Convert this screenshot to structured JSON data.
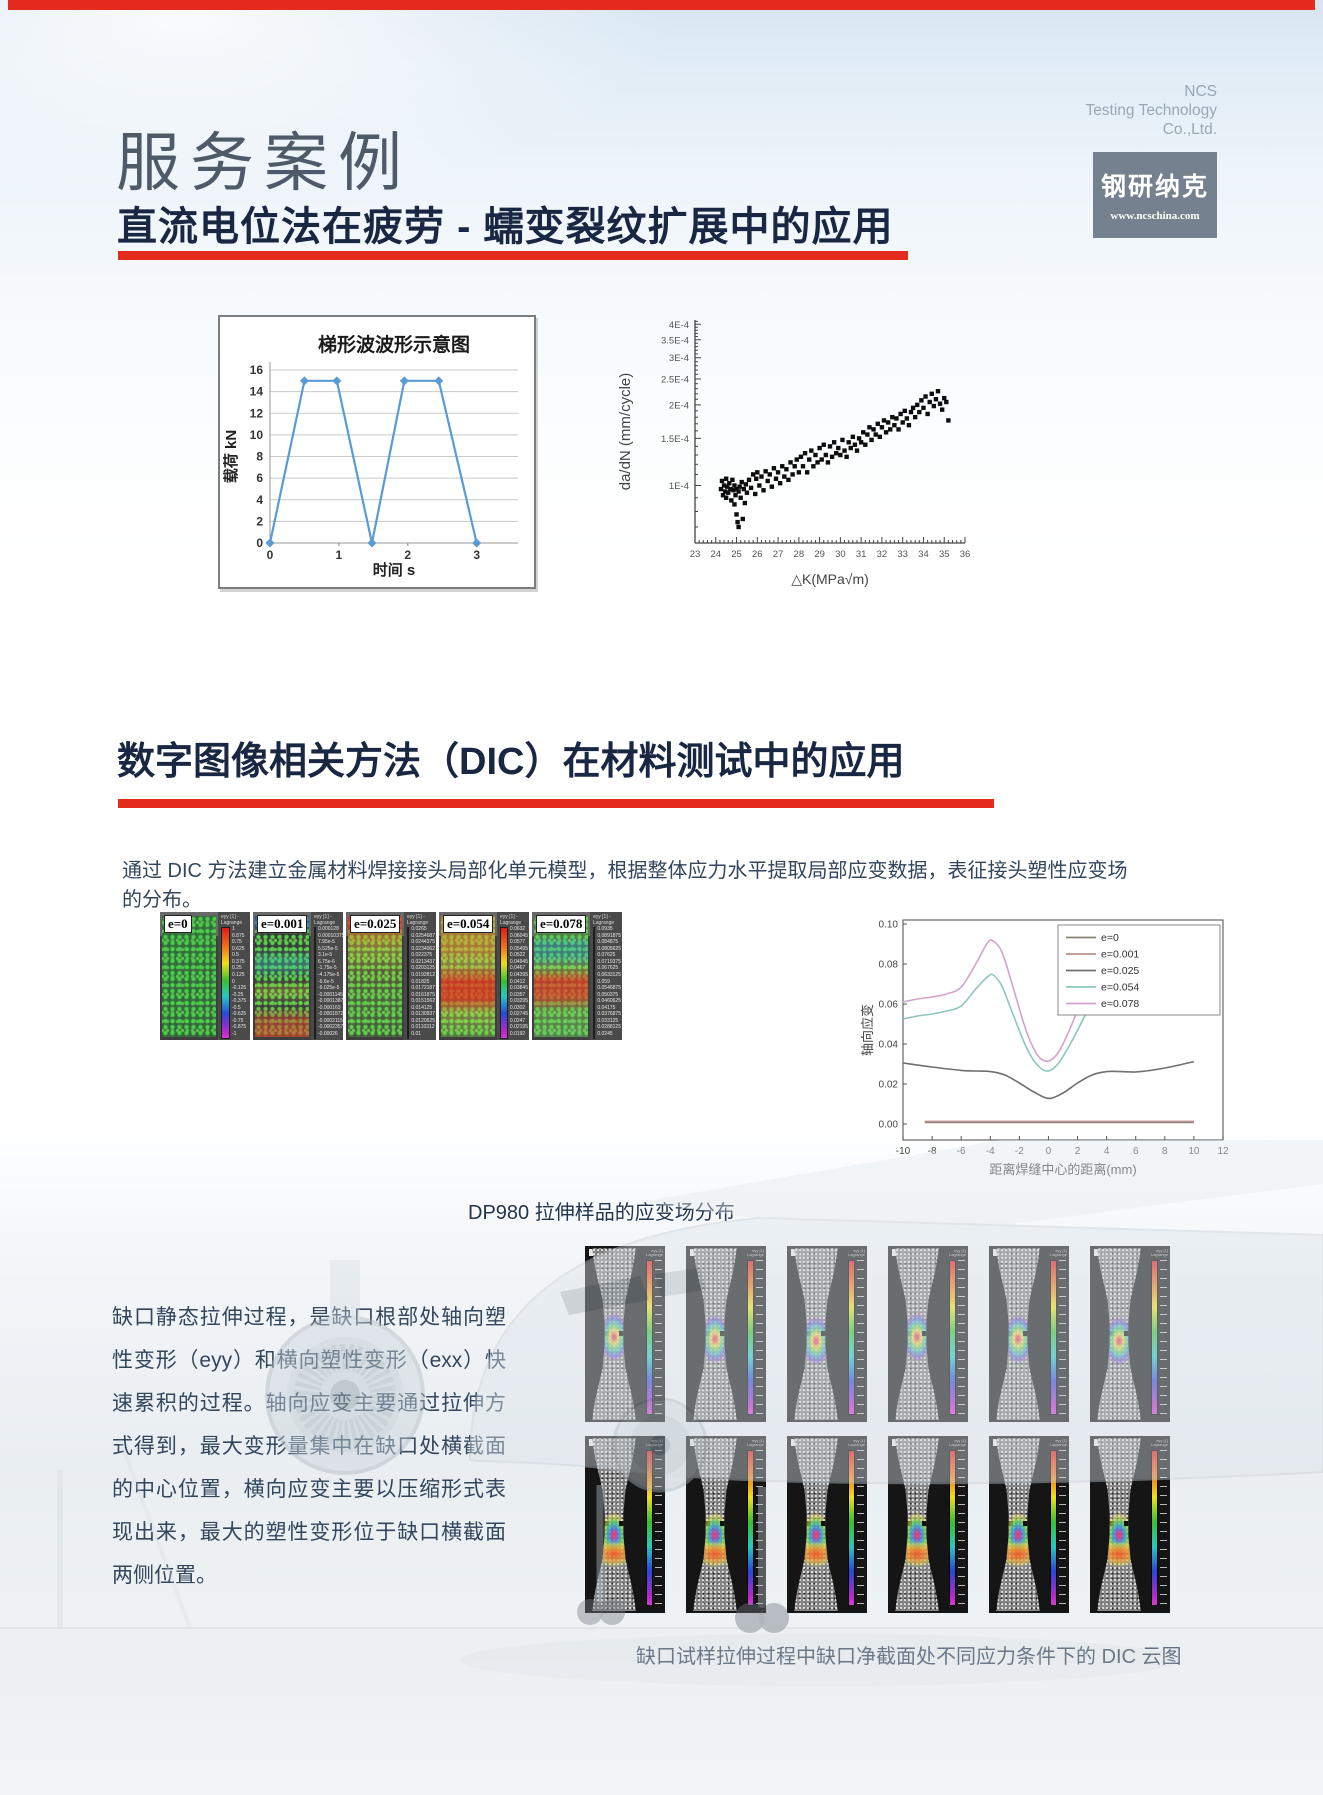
{
  "page": {
    "accent_red": "#e52a1e",
    "navy": "#1a2742",
    "header": {
      "company_lines": [
        "NCS",
        "Testing Technology",
        "Co.,Ltd."
      ],
      "page_title": "服务案例",
      "subtitle": "直流电位法在疲劳 - 蠕变裂纹扩展中的应用",
      "logo_text": "钢研纳克",
      "logo_url": "www.ncschina.com"
    },
    "section2_title": "数字图像相关方法（DIC）在材料测试中的应用",
    "intro_paragraph": "通过 DIC 方法建立金属材料焊接接头局部化单元模型，根据整体应力水平提取局部应变数据，表征接头塑性应变场的分布。",
    "caption_dp980": "DP980 拉伸样品的应变场分布",
    "notch_paragraph": "缺口静态拉伸过程，是缺口根部处轴向塑性变形（eyy）和横向塑性变形（exx）快速累积的过程。轴向应变主要通过拉伸方式得到，最大变形量集中在缺口处横截面的中心位置，横向应变主要以压缩形式表现出来，最大的塑性变形位于缺口横截面两侧位置。",
    "caption_dic": "缺口试样拉伸过程中缺口净截面处不同应力条件下的 DIC 云图"
  },
  "dic_panels": [
    {
      "label": "e=0",
      "style": "b-green",
      "cbar_title": "eyy [1] -\nLagrange",
      "cbar_values": [
        "1",
        "0.875",
        "0.75",
        "0.625",
        "0.5",
        "0.375",
        "0.25",
        "0.125",
        "0",
        "-0.125",
        "-0.25",
        "-0.375",
        "-0.5",
        "-0.625",
        "-0.75",
        "-0.875",
        "-1"
      ]
    },
    {
      "label": "e=0.001",
      "style": "b-m1",
      "cbar_title": "eyy [1] -\nLagrange",
      "cbar_values": [
        "0.000128",
        "0.00010375",
        "7.95e-5",
        "5.525e-5",
        "3.1e-5",
        "6.75e-6",
        "-1.75e-5",
        "-4.175e-5",
        "-6.6e-5",
        "-9.025e-5",
        "-0.0001145",
        "-0.00013875",
        "-0.000163",
        "-0.00018725",
        "-0.0002115",
        "-0.00023575",
        "-0.00026"
      ]
    },
    {
      "label": "e=0.025",
      "style": "b-m2",
      "cbar_title": "eyy [1] -\nLagrange",
      "cbar_values": [
        "0.0265",
        "0.0254687",
        "0.0244375",
        "0.0234062",
        "0.022375",
        "0.0213437",
        "0.0203125",
        "0.0192812",
        "0.01825",
        "0.0172187",
        "0.0161875",
        "0.0151562",
        "0.014125",
        "0.0130937",
        "0.0120625",
        "0.0110312",
        "0.01"
      ]
    },
    {
      "label": "e=0.054",
      "style": "b-warm",
      "cbar_title": "eyy [1] -\nLagrange",
      "cbar_values": [
        "0.0632",
        "0.06045",
        "0.0577",
        "0.05495",
        "0.0522",
        "0.04945",
        "0.0467",
        "0.04395",
        "0.0412",
        "0.03845",
        "0.0357",
        "0.03295",
        "0.0302",
        "0.02745",
        "0.0247",
        "0.02195",
        "0.0192"
      ]
    },
    {
      "label": "e=0.078",
      "style": "b-warm2",
      "cbar_title": "eyy [1] -\nLagrange",
      "cbar_values": [
        "0.0935",
        "0.0891875",
        "0.084875",
        "0.0805625",
        "0.07625",
        "0.0719375",
        "0.067625",
        "0.0633125",
        "0.059",
        "0.0546875",
        "0.050375",
        "0.0460625",
        "0.04175",
        "0.0376875",
        "0.033125",
        "0.0288125",
        "0.0245"
      ]
    }
  ],
  "specimen_grid": {
    "rows": 2,
    "cols": 6
  },
  "chart_data": [
    {
      "type": "line",
      "title": "梯形波波形示意图",
      "xlabel": "时间 s",
      "ylabel": "载荷 kN",
      "xlim": [
        0,
        3.6
      ],
      "ylim": [
        0,
        16
      ],
      "xticks": [
        0,
        1,
        2,
        3
      ],
      "yticks": [
        0,
        2,
        4,
        6,
        8,
        10,
        12,
        14,
        16
      ],
      "grid": true,
      "markers": true,
      "line_color": "#5b9bd5",
      "points": [
        [
          0,
          0
        ],
        [
          0.5,
          15
        ],
        [
          0.97,
          15
        ],
        [
          1.48,
          0
        ],
        [
          1.95,
          15
        ],
        [
          2.45,
          15
        ],
        [
          3.0,
          0
        ]
      ]
    },
    {
      "type": "scatter",
      "xlabel": "△K(MPa√m)",
      "ylabel": "da/dN (mm/cycle)",
      "xlim": [
        23,
        36
      ],
      "xticks": [
        23,
        24,
        25,
        26,
        27,
        28,
        29,
        30,
        31,
        32,
        33,
        34,
        35,
        36
      ],
      "ylog": true,
      "ylim": [
        6.1e-05,
        0.000415
      ],
      "ytick_values": [
        0.0001,
        0.00015,
        0.0002,
        0.00025,
        0.0003,
        0.00035,
        0.0004
      ],
      "ytick_labels": [
        "1E-4",
        "1.5E-4",
        "2E-4",
        "2.5E-4",
        "3E-4",
        "3.5E-4",
        "4E-4"
      ],
      "marker_color": "#0d0d0d",
      "y_scale": 0.0001,
      "points": [
        [
          24.25,
          0.97
        ],
        [
          24.3,
          1.04
        ],
        [
          24.35,
          0.92
        ],
        [
          24.4,
          1.0
        ],
        [
          24.45,
          0.95
        ],
        [
          24.5,
          1.06
        ],
        [
          24.5,
          0.9
        ],
        [
          24.55,
          0.99
        ],
        [
          24.6,
          0.94
        ],
        [
          24.65,
          1.02
        ],
        [
          24.7,
          0.97
        ],
        [
          24.75,
          0.88
        ],
        [
          24.8,
          1.05
        ],
        [
          24.85,
          0.96
        ],
        [
          24.9,
          0.85
        ],
        [
          24.9,
          1.0
        ],
        [
          24.95,
          0.92
        ],
        [
          25.0,
          0.78
        ],
        [
          25.0,
          0.97
        ],
        [
          25.05,
          0.73
        ],
        [
          25.1,
          0.7
        ],
        [
          25.1,
          0.95
        ],
        [
          25.15,
          0.99
        ],
        [
          25.2,
          0.9
        ],
        [
          25.25,
          1.03
        ],
        [
          25.3,
          0.75
        ],
        [
          25.35,
          0.97
        ],
        [
          25.4,
          0.86
        ],
        [
          25.45,
          1.01
        ],
        [
          25.5,
          0.94
        ],
        [
          25.6,
          1.05
        ],
        [
          25.7,
          0.98
        ],
        [
          25.8,
          1.1
        ],
        [
          25.9,
          0.93
        ],
        [
          25.95,
          1.06
        ],
        [
          26.0,
          1.12
        ],
        [
          26.1,
          1.0
        ],
        [
          26.2,
          1.08
        ],
        [
          26.3,
          0.96
        ],
        [
          26.4,
          1.13
        ],
        [
          26.5,
          1.04
        ],
        [
          26.6,
          1.1
        ],
        [
          26.7,
          0.99
        ],
        [
          26.8,
          1.16
        ],
        [
          26.9,
          1.06
        ],
        [
          27.0,
          1.12
        ],
        [
          27.1,
          1.02
        ],
        [
          27.2,
          1.18
        ],
        [
          27.3,
          1.08
        ],
        [
          27.4,
          1.15
        ],
        [
          27.5,
          1.05
        ],
        [
          27.6,
          1.22
        ],
        [
          27.7,
          1.1
        ],
        [
          27.8,
          1.18
        ],
        [
          27.9,
          1.25
        ],
        [
          28.0,
          1.12
        ],
        [
          28.1,
          1.28
        ],
        [
          28.2,
          1.18
        ],
        [
          28.3,
          1.32
        ],
        [
          28.4,
          1.12
        ],
        [
          28.5,
          1.25
        ],
        [
          28.6,
          1.35
        ],
        [
          28.7,
          1.18
        ],
        [
          28.8,
          1.3
        ],
        [
          28.9,
          1.22
        ],
        [
          29.0,
          1.38
        ],
        [
          29.1,
          1.25
        ],
        [
          29.2,
          1.42
        ],
        [
          29.3,
          1.3
        ],
        [
          29.4,
          1.22
        ],
        [
          29.5,
          1.4
        ],
        [
          29.6,
          1.28
        ],
        [
          29.7,
          1.45
        ],
        [
          29.8,
          1.32
        ],
        [
          29.9,
          1.38
        ],
        [
          30.0,
          1.3
        ],
        [
          30.1,
          1.48
        ],
        [
          30.2,
          1.35
        ],
        [
          30.3,
          1.28
        ],
        [
          30.4,
          1.45
        ],
        [
          30.5,
          1.38
        ],
        [
          30.6,
          1.52
        ],
        [
          30.7,
          1.42
        ],
        [
          30.8,
          1.35
        ],
        [
          30.9,
          1.5
        ],
        [
          31.0,
          1.45
        ],
        [
          31.1,
          1.58
        ],
        [
          31.2,
          1.42
        ],
        [
          31.3,
          1.55
        ],
        [
          31.4,
          1.65
        ],
        [
          31.5,
          1.48
        ],
        [
          31.6,
          1.62
        ],
        [
          31.7,
          1.55
        ],
        [
          31.8,
          1.7
        ],
        [
          31.9,
          1.52
        ],
        [
          32.0,
          1.65
        ],
        [
          32.1,
          1.75
        ],
        [
          32.2,
          1.58
        ],
        [
          32.3,
          1.72
        ],
        [
          32.4,
          1.62
        ],
        [
          32.5,
          1.8
        ],
        [
          32.6,
          1.68
        ],
        [
          32.7,
          1.78
        ],
        [
          32.8,
          1.62
        ],
        [
          32.9,
          1.85
        ],
        [
          33.0,
          1.72
        ],
        [
          33.1,
          1.9
        ],
        [
          33.2,
          1.78
        ],
        [
          33.3,
          1.68
        ],
        [
          33.4,
          1.88
        ],
        [
          33.5,
          1.95
        ],
        [
          33.6,
          1.8
        ],
        [
          33.7,
          2.0
        ],
        [
          33.8,
          1.88
        ],
        [
          33.9,
          2.08
        ],
        [
          34.0,
          1.95
        ],
        [
          34.1,
          2.15
        ],
        [
          34.2,
          1.85
        ],
        [
          34.3,
          2.05
        ],
        [
          34.4,
          2.2
        ],
        [
          34.5,
          1.98
        ],
        [
          34.6,
          2.1
        ],
        [
          34.7,
          2.25
        ],
        [
          34.8,
          2.02
        ],
        [
          34.9,
          1.92
        ],
        [
          35.0,
          2.12
        ],
        [
          35.1,
          2.05
        ],
        [
          35.2,
          1.75
        ]
      ]
    },
    {
      "type": "line-multi",
      "xlabel": "距离焊缝中心的距离(mm)",
      "ylabel": "轴向应变",
      "xlim": [
        -10,
        12
      ],
      "ylim": [
        -0.008,
        0.102
      ],
      "xticks": [
        -10,
        -8,
        -6,
        -4,
        -2,
        0,
        2,
        4,
        6,
        8,
        10,
        12
      ],
      "yticks": [
        0.0,
        0.02,
        0.04,
        0.06,
        0.08,
        0.1
      ],
      "legend_position": "top-right",
      "series": [
        {
          "name": "e=0",
          "color": "#8a8578",
          "points": [
            [
              -8.5,
              0.0008
            ],
            [
              10,
              0.0008
            ]
          ]
        },
        {
          "name": "e=0.001",
          "color": "#bb8f8c",
          "points": [
            [
              -8.5,
              0.0013
            ],
            [
              10,
              0.0013
            ]
          ]
        },
        {
          "name": "e=0.025",
          "color": "#6f6f6f",
          "points": [
            [
              -10,
              0.0305
            ],
            [
              -8,
              0.0285
            ],
            [
              -6,
              0.0268
            ],
            [
              -5,
              0.0265
            ],
            [
              -4,
              0.0262
            ],
            [
              -3,
              0.0245
            ],
            [
              -2,
              0.0205
            ],
            [
              -1,
              0.016
            ],
            [
              0,
              0.0128
            ],
            [
              1,
              0.0155
            ],
            [
              2,
              0.0205
            ],
            [
              3,
              0.0245
            ],
            [
              4,
              0.0262
            ],
            [
              5,
              0.0262
            ],
            [
              6,
              0.026
            ],
            [
              7,
              0.0268
            ],
            [
              8,
              0.028
            ],
            [
              9,
              0.0295
            ],
            [
              10,
              0.0312
            ]
          ]
        },
        {
          "name": "e=0.054",
          "color": "#8cc6bd",
          "points": [
            [
              -10,
              0.0525
            ],
            [
              -9,
              0.054
            ],
            [
              -8,
              0.055
            ],
            [
              -7,
              0.0565
            ],
            [
              -6,
              0.059
            ],
            [
              -5,
              0.0675
            ],
            [
              -4.2,
              0.0735
            ],
            [
              -3.8,
              0.0745
            ],
            [
              -3.2,
              0.069
            ],
            [
              -2.5,
              0.056
            ],
            [
              -1.5,
              0.038
            ],
            [
              -0.7,
              0.029
            ],
            [
              0,
              0.0265
            ],
            [
              0.7,
              0.0305
            ],
            [
              1.5,
              0.04
            ],
            [
              2.5,
              0.054
            ],
            [
              3.3,
              0.065
            ],
            [
              3.9,
              0.0705
            ],
            [
              4.5,
              0.0685
            ],
            [
              5.2,
              0.0635
            ],
            [
              6,
              0.0585
            ],
            [
              7,
              0.0585
            ],
            [
              8,
              0.06
            ],
            [
              9,
              0.062
            ],
            [
              10,
              0.0655
            ]
          ]
        },
        {
          "name": "e=0.078",
          "color": "#d5a2cb",
          "points": [
            [
              -10,
              0.061
            ],
            [
              -9,
              0.0625
            ],
            [
              -8,
              0.0635
            ],
            [
              -7,
              0.065
            ],
            [
              -6,
              0.0685
            ],
            [
              -5,
              0.08
            ],
            [
              -4.2,
              0.0905
            ],
            [
              -3.8,
              0.0915
            ],
            [
              -3.2,
              0.086
            ],
            [
              -2.5,
              0.07
            ],
            [
              -1.5,
              0.046
            ],
            [
              -0.7,
              0.034
            ],
            [
              0,
              0.0315
            ],
            [
              0.7,
              0.036
            ],
            [
              1.5,
              0.048
            ],
            [
              2.5,
              0.066
            ],
            [
              3.3,
              0.08
            ],
            [
              3.9,
              0.0855
            ],
            [
              4.5,
              0.083
            ],
            [
              5.2,
              0.0775
            ],
            [
              6,
              0.0715
            ],
            [
              7,
              0.0705
            ],
            [
              8,
              0.0725
            ],
            [
              9,
              0.0755
            ],
            [
              10,
              0.079
            ]
          ]
        }
      ]
    }
  ]
}
